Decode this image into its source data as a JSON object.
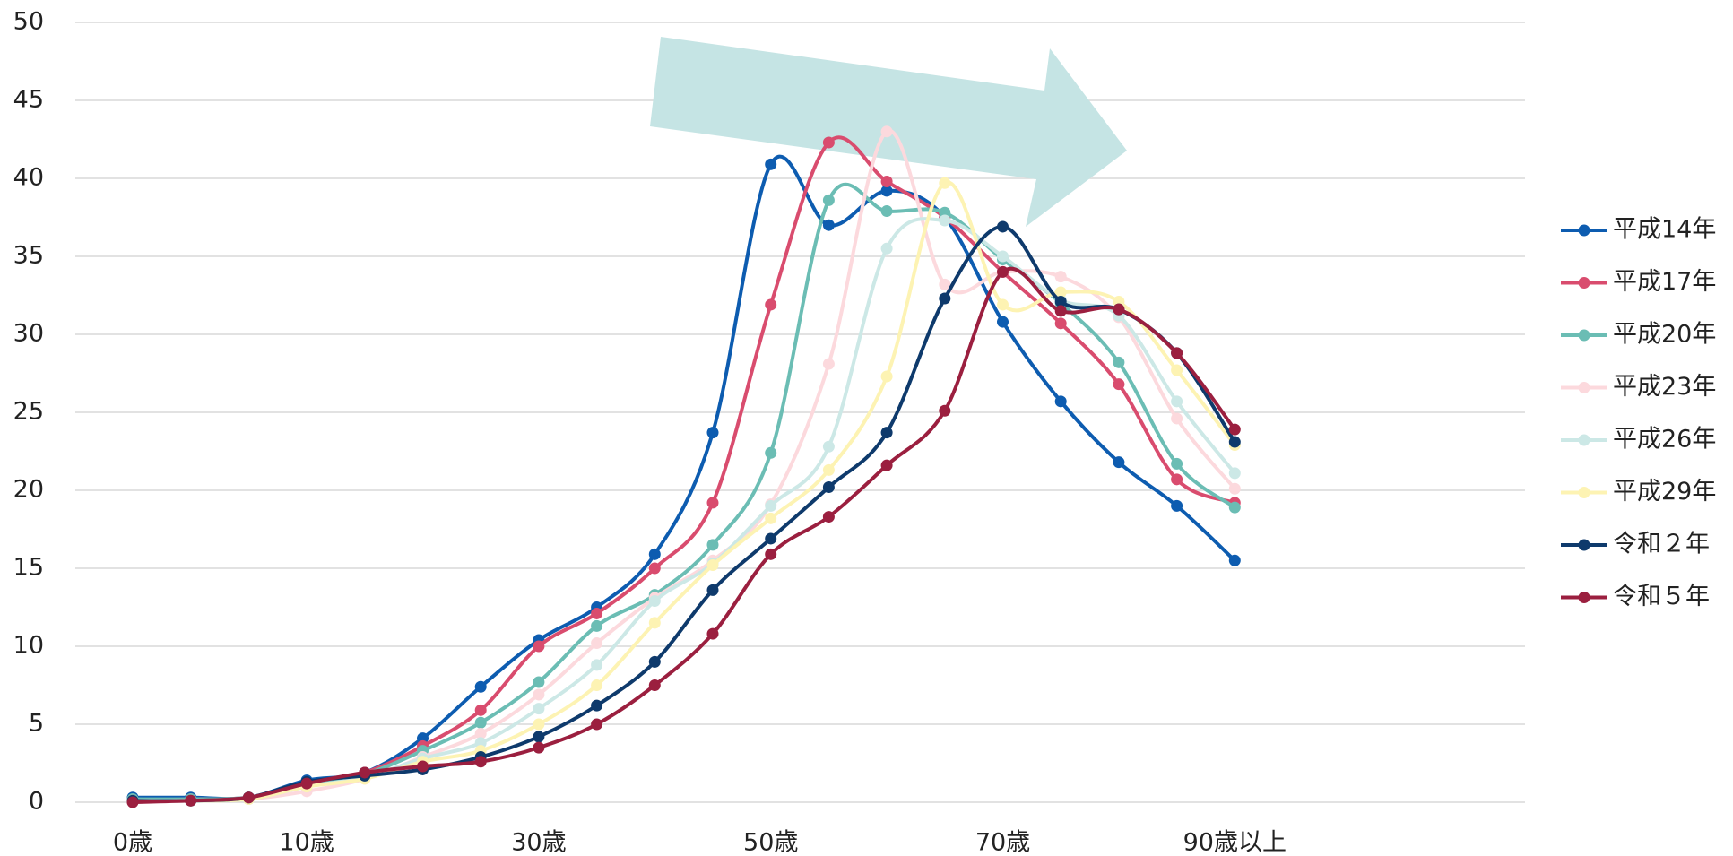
{
  "chart_data": {
    "type": "line",
    "categories": [
      "0歳",
      null,
      null,
      "10歳",
      null,
      null,
      null,
      "30歳",
      null,
      null,
      null,
      "50歳",
      null,
      null,
      null,
      "70歳",
      null,
      null,
      null,
      "90歳以上"
    ],
    "ylim": [
      0,
      50
    ],
    "yticks": [
      0,
      5,
      10,
      15,
      20,
      25,
      30,
      35,
      40,
      45,
      50
    ],
    "grid": true,
    "legend": "right",
    "smooth": true,
    "series": [
      {
        "name": "平成14年",
        "color": "#0d5cb0",
        "values": [
          0.3,
          0.3,
          0.3,
          1.4,
          1.9,
          4.1,
          7.4,
          10.4,
          12.5,
          15.9,
          23.7,
          40.9,
          37.0,
          39.2,
          37.5,
          30.8,
          25.7,
          21.8,
          19.0,
          15.5
        ]
      },
      {
        "name": "平成17年",
        "color": "#d94c6e",
        "values": [
          0.1,
          0.2,
          0.3,
          1.2,
          1.9,
          3.6,
          5.9,
          10.0,
          12.1,
          15.0,
          19.2,
          31.9,
          42.3,
          39.8,
          37.5,
          34.0,
          30.7,
          26.8,
          20.7,
          19.2
        ]
      },
      {
        "name": "平成20年",
        "color": "#6bbdb4",
        "values": [
          0.2,
          0.2,
          0.3,
          1.1,
          1.8,
          3.3,
          5.1,
          7.7,
          11.3,
          13.3,
          16.5,
          22.4,
          38.6,
          37.9,
          37.8,
          34.8,
          32.0,
          28.2,
          21.7,
          18.9
        ]
      },
      {
        "name": "平成23年",
        "color": "#fcd9dd",
        "values": [
          0.1,
          0.1,
          0.2,
          0.7,
          1.5,
          2.9,
          4.4,
          6.9,
          10.2,
          13.1,
          15.5,
          19.1,
          28.1,
          43.0,
          33.2,
          34.0,
          33.7,
          31.1,
          24.6,
          20.1
        ]
      },
      {
        "name": "平成26年",
        "color": "#cce8e6",
        "values": [
          0.1,
          0.1,
          0.2,
          1.0,
          1.6,
          2.8,
          3.8,
          6.0,
          8.8,
          12.9,
          15.3,
          19.0,
          22.8,
          35.5,
          37.3,
          35.0,
          32.2,
          31.2,
          25.7,
          21.1
        ]
      },
      {
        "name": "平成29年",
        "color": "#fdf3b3",
        "values": [
          0.1,
          0.1,
          0.2,
          1.0,
          1.5,
          2.6,
          3.3,
          5.0,
          7.5,
          11.5,
          15.2,
          18.2,
          21.3,
          27.3,
          39.7,
          31.9,
          32.7,
          32.1,
          27.7,
          22.9
        ]
      },
      {
        "name": "令和２年",
        "color": "#0e3a6c",
        "values": [
          0.1,
          0.1,
          0.3,
          1.3,
          1.7,
          2.1,
          2.9,
          4.2,
          6.2,
          9.0,
          13.6,
          16.9,
          20.2,
          23.7,
          32.3,
          36.9,
          32.1,
          31.6,
          28.8,
          23.1
        ]
      },
      {
        "name": "令和５年",
        "color": "#9b1f3f",
        "values": [
          0.0,
          0.1,
          0.3,
          1.2,
          1.9,
          2.3,
          2.6,
          3.5,
          5.0,
          7.5,
          10.8,
          15.9,
          18.3,
          21.6,
          25.1,
          34.0,
          31.5,
          31.6,
          28.8,
          23.9
        ]
      }
    ]
  }
}
